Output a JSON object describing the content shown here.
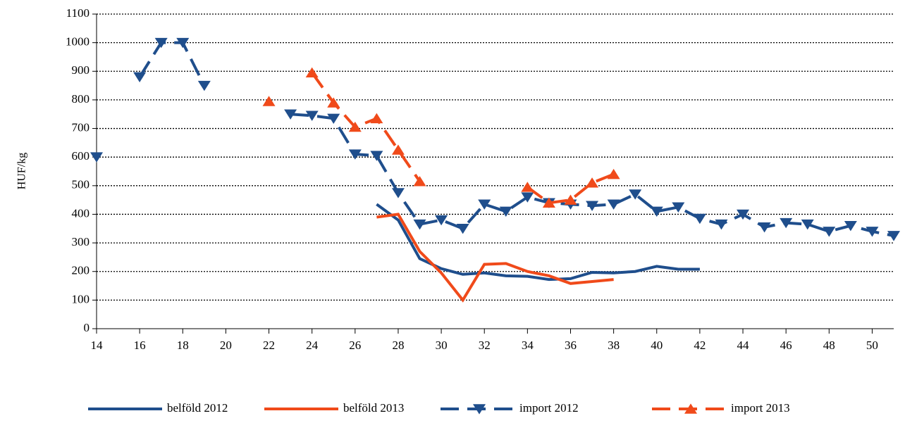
{
  "chart_data": {
    "type": "line",
    "y_label": "HUF/kg",
    "x": [
      14,
      15,
      16,
      17,
      18,
      19,
      20,
      21,
      22,
      23,
      24,
      25,
      26,
      27,
      28,
      29,
      30,
      31,
      32,
      33,
      34,
      35,
      36,
      37,
      38,
      39,
      40,
      41,
      42,
      43,
      44,
      45,
      46,
      47,
      48,
      49,
      50,
      51
    ],
    "xlim": [
      14,
      51
    ],
    "xticks": [
      14,
      16,
      18,
      20,
      22,
      24,
      26,
      28,
      30,
      32,
      34,
      36,
      38,
      40,
      42,
      44,
      46,
      48,
      50
    ],
    "ylim": [
      0,
      1100
    ],
    "yticks": [
      0,
      100,
      200,
      300,
      400,
      500,
      600,
      700,
      800,
      900,
      1000,
      1100
    ],
    "grid": true,
    "legend": "bottom",
    "series": [
      {
        "name": "belföld 2012",
        "color": "#1f4e8c",
        "dashed": false,
        "marker": null,
        "values": [
          null,
          null,
          null,
          null,
          null,
          null,
          null,
          null,
          null,
          null,
          null,
          null,
          null,
          435,
          380,
          245,
          210,
          190,
          195,
          185,
          183,
          172,
          175,
          197,
          195,
          200,
          218,
          208,
          208,
          null,
          null,
          null,
          null,
          null,
          null,
          null,
          null,
          null
        ]
      },
      {
        "name": "belföld 2013",
        "color": "#f04a1a",
        "dashed": false,
        "marker": null,
        "values": [
          null,
          null,
          null,
          null,
          null,
          null,
          null,
          null,
          null,
          null,
          null,
          null,
          null,
          390,
          400,
          270,
          195,
          100,
          225,
          228,
          200,
          185,
          158,
          165,
          172,
          null,
          null,
          null,
          null,
          null,
          null,
          null,
          null,
          null,
          null,
          null,
          null,
          null
        ]
      },
      {
        "name": "import 2012",
        "color": "#1f4e8c",
        "dashed": true,
        "marker": "triangle-down",
        "values": [
          600,
          null,
          880,
          1000,
          1000,
          850,
          null,
          null,
          null,
          750,
          745,
          735,
          610,
          605,
          475,
          365,
          380,
          350,
          435,
          410,
          460,
          440,
          435,
          430,
          435,
          470,
          410,
          425,
          385,
          365,
          400,
          355,
          370,
          365,
          340,
          360,
          340,
          325
        ]
      },
      {
        "name": "import 2013",
        "color": "#f04a1a",
        "dashed": true,
        "marker": "triangle-up",
        "values": [
          null,
          null,
          null,
          null,
          null,
          null,
          null,
          null,
          795,
          null,
          895,
          790,
          705,
          735,
          625,
          515,
          null,
          null,
          null,
          null,
          495,
          440,
          450,
          510,
          540,
          null,
          null,
          null,
          null,
          null,
          null,
          null,
          null,
          null,
          null,
          null,
          null,
          null
        ]
      }
    ]
  }
}
